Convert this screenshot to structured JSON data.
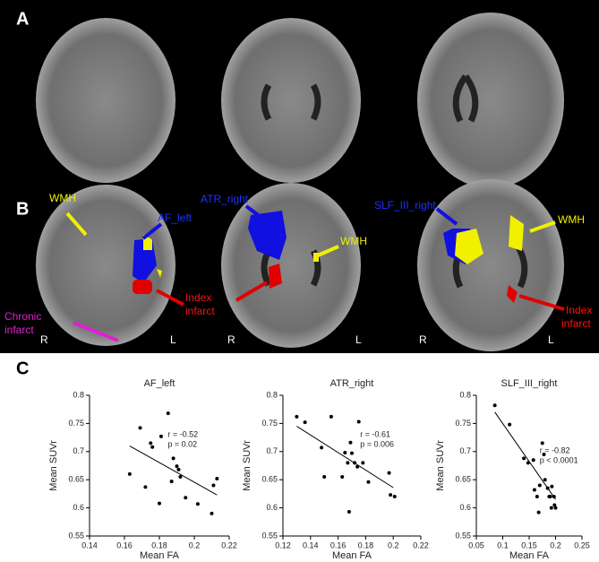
{
  "figure": {
    "panel_labels": [
      "A",
      "B",
      "C"
    ],
    "annotations": [
      "WMH",
      "AF_left",
      "Chronic",
      "infarct",
      "Index",
      "infarct",
      "R",
      "L",
      "ATR_right",
      "WMH",
      "R",
      "L",
      "SLF_III_right",
      "WMH",
      "Index",
      "infarct",
      "R",
      "L"
    ]
  },
  "chart_data": [
    {
      "type": "scatter",
      "title": "AF_left",
      "xlabel": "Mean FA",
      "ylabel": "Mean SUVr",
      "xlim": [
        0.14,
        0.22
      ],
      "xticks": [
        0.14,
        0.16,
        0.18,
        0.2,
        0.22
      ],
      "ylim": [
        0.55,
        0.8
      ],
      "yticks": [
        0.55,
        0.6,
        0.65,
        0.7,
        0.75,
        0.8
      ],
      "x": [
        0.163,
        0.169,
        0.172,
        0.175,
        0.176,
        0.18,
        0.181,
        0.185,
        0.187,
        0.188,
        0.19,
        0.191,
        0.192,
        0.195,
        0.202,
        0.21,
        0.211,
        0.213
      ],
      "values": [
        0.66,
        0.742,
        0.637,
        0.715,
        0.708,
        0.608,
        0.727,
        0.768,
        0.647,
        0.688,
        0.674,
        0.668,
        0.655,
        0.618,
        0.607,
        0.59,
        0.64,
        0.652
      ],
      "fit": {
        "x": [
          0.163,
          0.213
        ],
        "y": [
          0.71,
          0.623
        ]
      },
      "stats": [
        "r = -0.52",
        "p = 0.02"
      ],
      "color": "#000000"
    },
    {
      "type": "scatter",
      "title": "ATR_right",
      "xlabel": "Mean FA",
      "ylabel": "Mean SUVr",
      "xlim": [
        0.12,
        0.22
      ],
      "xticks": [
        0.12,
        0.14,
        0.16,
        0.18,
        0.2,
        0.22
      ],
      "ylim": [
        0.55,
        0.8
      ],
      "yticks": [
        0.55,
        0.6,
        0.65,
        0.7,
        0.75,
        0.8
      ],
      "x": [
        0.13,
        0.136,
        0.148,
        0.15,
        0.155,
        0.163,
        0.165,
        0.167,
        0.168,
        0.169,
        0.17,
        0.172,
        0.174,
        0.175,
        0.178,
        0.182,
        0.197,
        0.198,
        0.201
      ],
      "values": [
        0.762,
        0.752,
        0.707,
        0.655,
        0.762,
        0.655,
        0.698,
        0.68,
        0.593,
        0.716,
        0.697,
        0.68,
        0.673,
        0.753,
        0.68,
        0.646,
        0.662,
        0.623,
        0.62
      ],
      "fit": {
        "x": [
          0.13,
          0.2
        ],
        "y": [
          0.745,
          0.636
        ]
      },
      "stats": [
        "r = -0.61",
        "p = 0.006"
      ],
      "color": "#000000"
    },
    {
      "type": "scatter",
      "title": "SLF_III_right",
      "xlabel": "Mean FA",
      "ylabel": "Mean SUVr",
      "xlim": [
        0.05,
        0.25
      ],
      "xticks": [
        0.05,
        0.1,
        0.15,
        0.2,
        0.25
      ],
      "ylim": [
        0.55,
        0.8
      ],
      "yticks": [
        0.55,
        0.6,
        0.65,
        0.7,
        0.75,
        0.8
      ],
      "x": [
        0.085,
        0.113,
        0.14,
        0.148,
        0.158,
        0.16,
        0.165,
        0.168,
        0.17,
        0.175,
        0.178,
        0.18,
        0.185,
        0.188,
        0.19,
        0.192,
        0.193,
        0.197,
        0.198,
        0.2
      ],
      "values": [
        0.782,
        0.748,
        0.688,
        0.68,
        0.685,
        0.632,
        0.62,
        0.592,
        0.64,
        0.715,
        0.695,
        0.65,
        0.635,
        0.62,
        0.62,
        0.6,
        0.638,
        0.62,
        0.605,
        0.6
      ],
      "fit": {
        "x": [
          0.085,
          0.2
        ],
        "y": [
          0.77,
          0.615
        ]
      },
      "stats": [
        "r = -0.82",
        "p < 0.0001"
      ],
      "color": "#000000"
    }
  ]
}
